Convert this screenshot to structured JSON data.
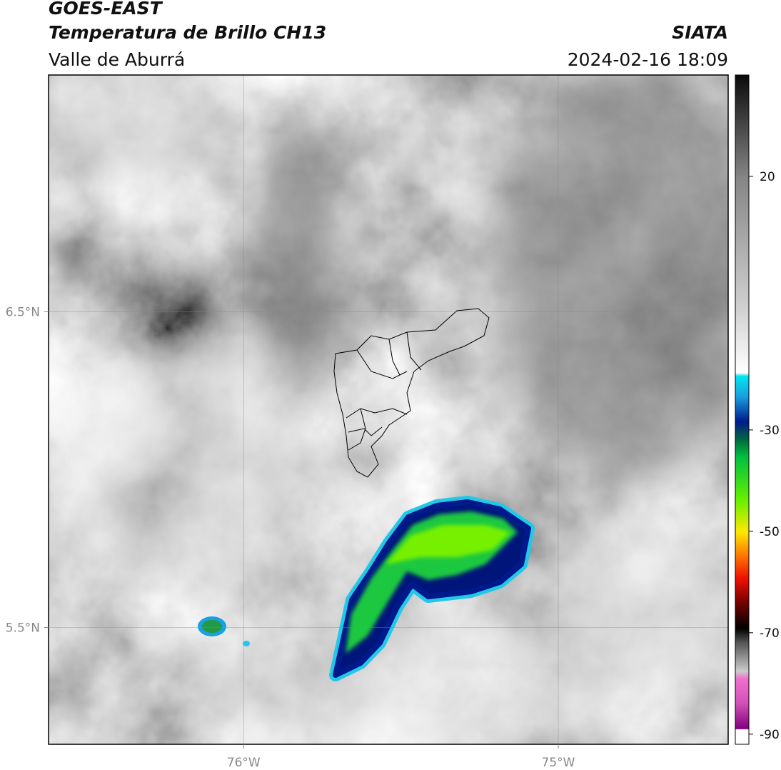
{
  "header": {
    "title": "GOES-EAST",
    "subtitle": "Temperatura de Brillo CH13",
    "source": "SIATA",
    "region": "Valle de Aburrá",
    "timestamp": "2024-02-16 18:09"
  },
  "map": {
    "xlim": [
      -76.62,
      -74.46
    ],
    "ylim": [
      5.13,
      7.25
    ],
    "xticks": [
      {
        "value": -76,
        "label": "76°W"
      },
      {
        "value": -75,
        "label": "75°W"
      }
    ],
    "yticks": [
      {
        "value": 5.5,
        "label": "5.5°N"
      },
      {
        "value": 6.5,
        "label": "6.5°N"
      }
    ]
  },
  "colorbar": {
    "lim": [
      -92,
      40
    ],
    "ticks": [
      -90,
      -70,
      -50,
      -30,
      20
    ]
  }
}
